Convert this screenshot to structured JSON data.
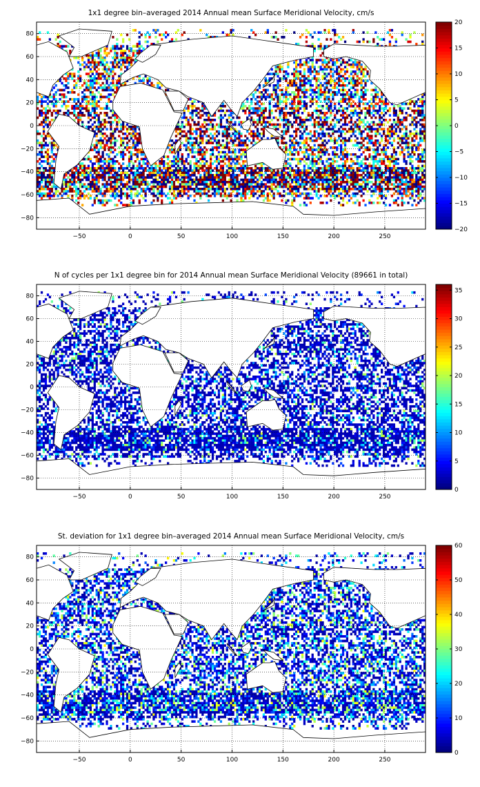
{
  "figure": {
    "panels": [
      {
        "id": "velocity",
        "title": "1x1 degree bin–averaged 2014 Annual mean Surface Meridional Velocity, cm/s",
        "colorbar": {
          "min": -20,
          "max": 20,
          "ticks": [
            "20",
            "15",
            "10",
            "5",
            "0",
            "−5",
            "−10",
            "−15",
            "−20"
          ]
        },
        "field": "signed"
      },
      {
        "id": "cycles",
        "title": "N of cycles per 1x1 degree bin for 2014 Annual mean Surface Meridional Velocity (89661 in total)",
        "colorbar": {
          "min": 0,
          "max": 36,
          "ticks": [
            "35",
            "30",
            "25",
            "20",
            "15",
            "10",
            "5",
            "0"
          ]
        },
        "field": "count"
      },
      {
        "id": "stdev",
        "title": "St. deviation for 1x1 degree bin–averaged 2014 Annual mean Surface Meridional Velocity, cm/s",
        "colorbar": {
          "min": 0,
          "max": 60,
          "ticks": [
            "60",
            "50",
            "40",
            "30",
            "20",
            "10",
            "0"
          ]
        },
        "field": "positive"
      }
    ],
    "x_ticks": [
      "−50",
      "0",
      "50",
      "100",
      "150",
      "200",
      "250"
    ],
    "y_ticks": [
      "80",
      "60",
      "40",
      "20",
      "0",
      "−20",
      "−40",
      "−60",
      "−80"
    ],
    "x_range": [
      -92,
      290
    ],
    "y_range": [
      -90,
      90
    ]
  }
}
